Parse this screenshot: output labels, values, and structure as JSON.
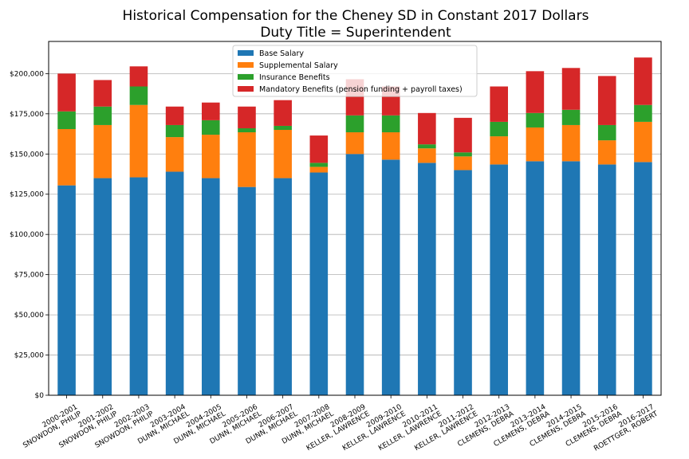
{
  "chart_data": {
    "type": "bar",
    "stacked": true,
    "title": "Historical Compensation for the Cheney SD in Constant 2017 Dollars",
    "subtitle": "Duty Title = Superintendent",
    "xlabel": "",
    "ylabel": "",
    "ylim": [
      0,
      220000
    ],
    "yticks": [
      {
        "value": 0,
        "label": "$0"
      },
      {
        "value": 25000,
        "label": "$25,000"
      },
      {
        "value": 50000,
        "label": "$50,000"
      },
      {
        "value": 75000,
        "label": "$75,000"
      },
      {
        "value": 100000,
        "label": "$100,000"
      },
      {
        "value": 125000,
        "label": "$125,000"
      },
      {
        "value": 150000,
        "label": "$150,000"
      },
      {
        "value": 175000,
        "label": "$175,000"
      },
      {
        "value": 200000,
        "label": "$200,000"
      }
    ],
    "grid": "horizontal",
    "legend_position": "top-center",
    "categories": [
      {
        "line1": "2000-2001",
        "line2": "SNOWDON, PHILIP"
      },
      {
        "line1": "2001-2002",
        "line2": "SNOWDON, PHILIP"
      },
      {
        "line1": "2002-2003",
        "line2": "SNOWDON, PHILIP"
      },
      {
        "line1": "2003-2004",
        "line2": "DUNN, MICHAEL"
      },
      {
        "line1": "2004-2005",
        "line2": "DUNN, MICHAEL"
      },
      {
        "line1": "2005-2006",
        "line2": "DUNN, MICHAEL"
      },
      {
        "line1": "2006-2007",
        "line2": "DUNN, MICHAEL"
      },
      {
        "line1": "2007-2008",
        "line2": "DUNN, MICHAEL"
      },
      {
        "line1": "2008-2009",
        "line2": "KELLER, LAWRENCE"
      },
      {
        "line1": "2009-2010",
        "line2": "KELLER, LAWRENCE"
      },
      {
        "line1": "2010-2011",
        "line2": "KELLER, LAWRENCE"
      },
      {
        "line1": "2011-2012",
        "line2": "KELLER, LAWRENCE"
      },
      {
        "line1": "2012-2013",
        "line2": "CLEMENS, DEBRA"
      },
      {
        "line1": "2013-2014",
        "line2": "CLEMENS, DEBRA"
      },
      {
        "line1": "2014-2015",
        "line2": "CLEMENS, DEBRA"
      },
      {
        "line1": "2015-2016",
        "line2": "CLEMENS, DEBRA"
      },
      {
        "line1": "2016-2017",
        "line2": "ROETTGER, ROBERT"
      }
    ],
    "series": [
      {
        "name": "Base Salary",
        "color": "#1f77b4",
        "values": [
          130500,
          135000,
          135500,
          139000,
          135000,
          129500,
          135000,
          138500,
          150000,
          146500,
          144500,
          140000,
          143500,
          145500,
          145500,
          143500,
          145000
        ]
      },
      {
        "name": "Supplemental Salary",
        "color": "#ff7f0e",
        "values": [
          35000,
          33000,
          45000,
          21500,
          27000,
          34000,
          30000,
          3500,
          13500,
          17000,
          9000,
          8500,
          17500,
          21000,
          22500,
          15000,
          25000
        ]
      },
      {
        "name": "Insurance Benefits",
        "color": "#2ca02c",
        "values": [
          11000,
          11500,
          11500,
          7500,
          9000,
          2500,
          2500,
          2500,
          10500,
          10500,
          2500,
          2500,
          9000,
          9000,
          9500,
          9500,
          10500
        ]
      },
      {
        "name": "Mandatory Benefits (pension funding + payroll taxes)",
        "color": "#d62728",
        "values": [
          23500,
          16500,
          12500,
          11500,
          11000,
          13500,
          16000,
          17000,
          22500,
          18000,
          19500,
          21500,
          22000,
          26000,
          26000,
          30500,
          29500
        ]
      }
    ]
  }
}
